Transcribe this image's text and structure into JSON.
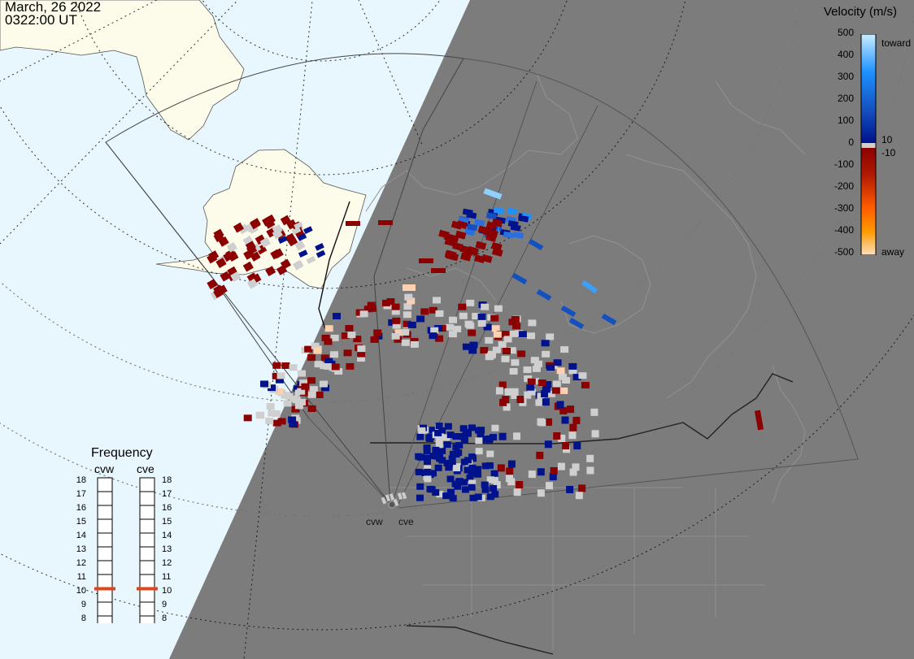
{
  "header": {
    "date": "March, 26 2022",
    "time": "0322:00 UT"
  },
  "colorbar": {
    "title": "Velocity (m/s)",
    "ticks": [
      "500",
      "400",
      "300",
      "200",
      "100",
      "0",
      "-100",
      "-200",
      "-300",
      "-400",
      "-500"
    ],
    "side_labels": {
      "toward": "toward",
      "pos_small": "10",
      "neg_small": "-10",
      "away": "away"
    },
    "colors": {
      "toward_light": "#c8eeff",
      "toward_mid": "#1e90ff",
      "toward_dark": "#00128c",
      "zero": "#cfcfcf",
      "away_dark": "#8b0000",
      "away_mid": "#ff7a00",
      "away_light": "#ffd9b3"
    }
  },
  "frequency": {
    "title": "Frequency",
    "radars": [
      "cvw",
      "cve"
    ],
    "levels": [
      "18",
      "17",
      "16",
      "15",
      "14",
      "13",
      "12",
      "11",
      "10",
      "9",
      "8"
    ],
    "current_mhz": 10.5,
    "marker_color": "#e0441a"
  },
  "sites": {
    "west": "cvw",
    "east": "cve"
  },
  "map": {
    "ocean_color": "#e8f6fd",
    "land_color": "#fdfbe9",
    "night_color": "#7c7c7c",
    "night_border_color": "#8e8e8e"
  }
}
